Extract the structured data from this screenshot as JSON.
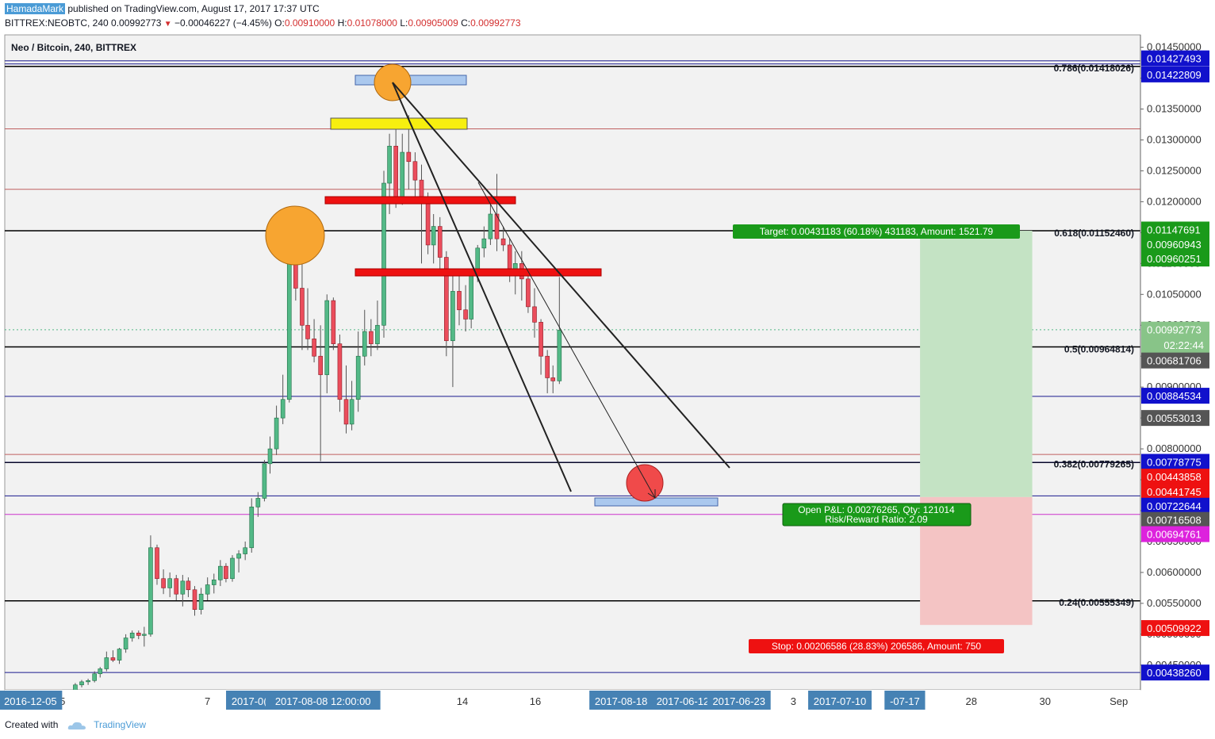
{
  "header": {
    "author": "HamadaMark",
    "published": "published on TradingView.com, August 17, 2017 17:37 UTC",
    "symbol_line": "BITTREX:NEOBTC, 240",
    "last": "0.00992773",
    "change": "−0.00046227 (−4.45%)",
    "o_label": "O:",
    "o": "0.00910000",
    "h_label": "H:",
    "h": "0.01078000",
    "l_label": "L:",
    "l": "0.00905009",
    "c_label": "C:",
    "c": "0.00992773"
  },
  "footer": {
    "created_with": "Created with",
    "brand": "TradingView"
  },
  "chart_data": {
    "type": "candlestick",
    "title": "Neo / Bitcoin, 240, BITTREX",
    "ylim": [
      0.0041,
      0.0147
    ],
    "y_ticks": [
      "0.01450000",
      "0.01400000",
      "0.01350000",
      "0.01300000",
      "0.01250000",
      "0.01200000",
      "0.01150000",
      "0.01100000",
      "0.01050000",
      "0.01000000",
      "0.00950000",
      "0.00900000",
      "0.00850000",
      "0.00800000",
      "0.00750000",
      "0.00700000",
      "0.00650000",
      "0.00600000",
      "0.00550000",
      "0.00500000",
      "0.00450000"
    ],
    "x_ticks": [
      {
        "label": "5",
        "x": 0.0
      },
      {
        "label": "7",
        "x": 18.1
      },
      {
        "label": "14",
        "x": 49.9
      },
      {
        "label": "16",
        "x": 59.0
      },
      {
        "label": "3",
        "x": 91.2
      },
      {
        "label": "28",
        "x": 113.4
      },
      {
        "label": "30",
        "x": 122.6
      },
      {
        "label": "Sep",
        "x": 131.8
      }
    ],
    "x_badges": [
      {
        "label": "2016-12-05",
        "x": -4.0
      },
      {
        "label": "2017-0(",
        "x": 23.3
      },
      {
        "label": "2017-08-08 12:00:00",
        "x": 32.5
      },
      {
        "label": "2017-08-18",
        "x": 69.7
      },
      {
        "label": "2017-06-12",
        "x": 77.4
      },
      {
        "label": "2017-06-23",
        "x": 84.4
      },
      {
        "label": "2017-07-10",
        "x": 97.0
      },
      {
        "label": "-07-17",
        "x": 105.1
      }
    ],
    "x_range": [
      -7.2,
      134.5
    ],
    "candles": [
      [
        1.6,
        0.00408,
        0.00421,
        0.00405,
        0.00418
      ],
      [
        2.4,
        0.00418,
        0.00426,
        0.00414,
        0.00423
      ],
      [
        3.2,
        0.00423,
        0.00428,
        0.00418,
        0.00425
      ],
      [
        4.0,
        0.00425,
        0.0044,
        0.00422,
        0.00436
      ],
      [
        4.7,
        0.00436,
        0.00447,
        0.0043,
        0.00444
      ],
      [
        5.5,
        0.00444,
        0.00472,
        0.0044,
        0.00462
      ],
      [
        6.3,
        0.00462,
        0.00474,
        0.00455,
        0.00458
      ],
      [
        7.1,
        0.00458,
        0.00478,
        0.00452,
        0.00476
      ],
      [
        7.9,
        0.00476,
        0.005,
        0.0047,
        0.00494
      ],
      [
        8.7,
        0.00494,
        0.00506,
        0.00488,
        0.00502
      ],
      [
        9.5,
        0.00502,
        0.00506,
        0.00492,
        0.00498
      ],
      [
        10.2,
        0.00498,
        0.00512,
        0.0048,
        0.005
      ],
      [
        11.0,
        0.005,
        0.0066,
        0.00496,
        0.0064
      ],
      [
        11.8,
        0.0064,
        0.00645,
        0.0058,
        0.0059
      ],
      [
        12.6,
        0.0059,
        0.00605,
        0.00565,
        0.00575
      ],
      [
        13.4,
        0.00575,
        0.006,
        0.0056,
        0.0059
      ],
      [
        14.2,
        0.0059,
        0.00596,
        0.00555,
        0.00565
      ],
      [
        15.0,
        0.00565,
        0.00596,
        0.00545,
        0.00586
      ],
      [
        15.7,
        0.00586,
        0.00592,
        0.0056,
        0.00572
      ],
      [
        16.5,
        0.00572,
        0.00578,
        0.0053,
        0.0054
      ],
      [
        17.3,
        0.0054,
        0.00575,
        0.00532,
        0.00565
      ],
      [
        18.1,
        0.00565,
        0.00592,
        0.00555,
        0.0058
      ],
      [
        18.9,
        0.0058,
        0.00598,
        0.00566,
        0.00588
      ],
      [
        19.7,
        0.00588,
        0.0062,
        0.00578,
        0.0061
      ],
      [
        20.4,
        0.0061,
        0.00615,
        0.00584,
        0.0059
      ],
      [
        21.2,
        0.0059,
        0.00628,
        0.00585,
        0.00623
      ],
      [
        22.0,
        0.00623,
        0.00636,
        0.006,
        0.0063
      ],
      [
        22.8,
        0.0063,
        0.0065,
        0.0062,
        0.0064
      ],
      [
        23.6,
        0.0064,
        0.0072,
        0.00632,
        0.00706
      ],
      [
        24.4,
        0.00706,
        0.0073,
        0.0069,
        0.0072
      ],
      [
        25.2,
        0.0072,
        0.00782,
        0.00715,
        0.00776
      ],
      [
        25.9,
        0.00776,
        0.0082,
        0.0076,
        0.008
      ],
      [
        26.7,
        0.008,
        0.0087,
        0.0079,
        0.0085
      ],
      [
        27.5,
        0.0085,
        0.0092,
        0.0084,
        0.0088
      ],
      [
        28.3,
        0.0088,
        0.0112,
        0.00875,
        0.011
      ],
      [
        29.1,
        0.011,
        0.0115,
        0.0104,
        0.0106
      ],
      [
        29.9,
        0.0106,
        0.0112,
        0.0096,
        0.01
      ],
      [
        30.6,
        0.01,
        0.0106,
        0.0096,
        0.00978
      ],
      [
        31.4,
        0.00978,
        0.0101,
        0.0094,
        0.0095
      ],
      [
        32.2,
        0.0095,
        0.01,
        0.0078,
        0.0092
      ],
      [
        33.0,
        0.0092,
        0.0105,
        0.0089,
        0.0104
      ],
      [
        33.8,
        0.0104,
        0.01045,
        0.0096,
        0.0097
      ],
      [
        34.6,
        0.0097,
        0.00985,
        0.0086,
        0.0088
      ],
      [
        35.4,
        0.0088,
        0.00935,
        0.00825,
        0.0084
      ],
      [
        36.1,
        0.0084,
        0.0091,
        0.0083,
        0.0088
      ],
      [
        36.9,
        0.0088,
        0.0099,
        0.0086,
        0.0095
      ],
      [
        37.7,
        0.0095,
        0.01025,
        0.00935,
        0.0099
      ],
      [
        38.5,
        0.0099,
        0.0101,
        0.0095,
        0.0097
      ],
      [
        39.3,
        0.0097,
        0.0104,
        0.0096,
        0.01
      ],
      [
        40.1,
        0.01,
        0.0125,
        0.0098,
        0.0123
      ],
      [
        40.8,
        0.0123,
        0.0131,
        0.0118,
        0.0129
      ],
      [
        41.6,
        0.0129,
        0.0133,
        0.0119,
        0.012
      ],
      [
        42.4,
        0.012,
        0.0131,
        0.01195,
        0.0128
      ],
      [
        43.2,
        0.0128,
        0.0134,
        0.0122,
        0.01265
      ],
      [
        44.0,
        0.01265,
        0.0128,
        0.012,
        0.01235
      ],
      [
        44.8,
        0.01235,
        0.0126,
        0.011,
        0.012
      ],
      [
        45.6,
        0.012,
        0.01215,
        0.01115,
        0.0113
      ],
      [
        46.3,
        0.0113,
        0.0118,
        0.011,
        0.0116
      ],
      [
        47.1,
        0.0116,
        0.01175,
        0.0109,
        0.0111
      ],
      [
        47.9,
        0.0111,
        0.0112,
        0.0095,
        0.00975
      ],
      [
        48.7,
        0.00975,
        0.0108,
        0.009,
        0.01055
      ],
      [
        49.5,
        0.01055,
        0.0109,
        0.01,
        0.01025
      ],
      [
        50.3,
        0.01025,
        0.01065,
        0.0099,
        0.0101
      ],
      [
        51.0,
        0.0101,
        0.0109,
        0.00995,
        0.0108
      ],
      [
        51.8,
        0.0108,
        0.0113,
        0.0107,
        0.01125
      ],
      [
        52.6,
        0.01125,
        0.0116,
        0.0111,
        0.0114
      ],
      [
        53.4,
        0.0114,
        0.012,
        0.0113,
        0.0118
      ],
      [
        54.2,
        0.0118,
        0.01245,
        0.0112,
        0.0114
      ],
      [
        55.0,
        0.0114,
        0.0116,
        0.0112,
        0.0113
      ],
      [
        55.8,
        0.0113,
        0.0114,
        0.0107,
        0.01085
      ],
      [
        56.5,
        0.01085,
        0.0112,
        0.0105,
        0.011
      ],
      [
        57.3,
        0.011,
        0.0112,
        0.0104,
        0.01075
      ],
      [
        58.1,
        0.01075,
        0.0108,
        0.0102,
        0.0103
      ],
      [
        58.9,
        0.0103,
        0.0106,
        0.0098,
        0.01005
      ],
      [
        59.7,
        0.01005,
        0.0101,
        0.0092,
        0.0095
      ],
      [
        60.5,
        0.0095,
        0.0096,
        0.0089,
        0.00915
      ],
      [
        61.2,
        0.00915,
        0.00935,
        0.0089,
        0.0091
      ],
      [
        62.0,
        0.0091,
        0.01078,
        0.00905,
        0.00992
      ]
    ],
    "price_lines": [
      {
        "price": 0.01428,
        "color": "#1a1a8e",
        "width": 1
      },
      {
        "price": 0.01423,
        "color": "#1a1a8e",
        "width": 1
      },
      {
        "price": 0.01419,
        "color": "#000000",
        "width": 1.5
      },
      {
        "price": 0.01318,
        "color": "#c06060",
        "width": 1
      },
      {
        "price": 0.0122,
        "color": "#c06060",
        "width": 1
      },
      {
        "price": 0.01153,
        "color": "#000000",
        "width": 1.5
      },
      {
        "price": 0.00965,
        "color": "#000000",
        "width": 1.5
      },
      {
        "price": 0.00885,
        "color": "#1a1a8e",
        "width": 1
      },
      {
        "price": 0.00791,
        "color": "#c06060",
        "width": 1
      },
      {
        "price": 0.00778,
        "color": "#1a1a8e",
        "width": 1.5
      },
      {
        "price": 0.00778,
        "color": "#000000",
        "width": 1
      },
      {
        "price": 0.00724,
        "color": "#1a1a8e",
        "width": 1
      },
      {
        "price": 0.00694,
        "color": "#cc33cc",
        "width": 1
      },
      {
        "price": 0.00554,
        "color": "#000000",
        "width": 1.5
      },
      {
        "price": 0.00438,
        "color": "#1a1a8e",
        "width": 1
      }
    ],
    "fib_labels": [
      {
        "text": "0.786(0.01418026)",
        "price": 0.01416
      },
      {
        "text": "0.618(0.01152460)",
        "price": 0.01149
      },
      {
        "text": "0.5(0.00964814)",
        "price": 0.00961
      },
      {
        "text": "0.382(0.00779265)",
        "price": 0.00775
      },
      {
        "text": "0.24(0.00555349)",
        "price": 0.00551
      }
    ],
    "price_badges": [
      {
        "text": "0.01427493",
        "price": 0.01432,
        "bg": "#1111cc"
      },
      {
        "text": "0.01422809",
        "price": 0.01406,
        "bg": "#1111cc"
      },
      {
        "text": "0.01147691",
        "price": 0.01155,
        "bg": "#1a9a1a"
      },
      {
        "text": "0.00960943",
        "price": 0.01131,
        "bg": "#1a9a1a"
      },
      {
        "text": "0.00960251",
        "price": 0.01108,
        "bg": "#1a9a1a"
      },
      {
        "text": "0.00992773",
        "price": 0.00993,
        "bg": "#88c488"
      },
      {
        "text": "02:22:44",
        "price": 0.00968,
        "bg": "#88c488"
      },
      {
        "text": "0.00681706",
        "price": 0.00943,
        "bg": "#555555"
      },
      {
        "text": "0.00884534",
        "price": 0.00886,
        "bg": "#1111cc"
      },
      {
        "text": "0.00553013",
        "price": 0.0085,
        "bg": "#555555"
      },
      {
        "text": "0.00778775",
        "price": 0.00779,
        "bg": "#1111cc"
      },
      {
        "text": "0.00443858",
        "price": 0.00755,
        "bg": "#ee1111"
      },
      {
        "text": "0.00441745",
        "price": 0.00731,
        "bg": "#ee1111"
      },
      {
        "text": "0.00722644",
        "price": 0.00708,
        "bg": "#1111cc"
      },
      {
        "text": "0.00716508",
        "price": 0.00685,
        "bg": "#555555"
      },
      {
        "text": "0.00694761",
        "price": 0.00662,
        "bg": "#dd22dd"
      },
      {
        "text": "0.00509922",
        "price": 0.0051,
        "bg": "#ee1111"
      },
      {
        "text": "0.00438260",
        "price": 0.00438,
        "bg": "#1111cc"
      }
    ],
    "position": {
      "x_start": 107.0,
      "x_end": 121.0,
      "entry": 0.00722,
      "target": 0.01153,
      "stop": 0.00515,
      "target_label": "Target: 0.00431183 (60.18%) 431183, Amount: 1521.79",
      "pnl_label": "Open P&L: 0.00276265, Qty: 121014",
      "rr_label": "Risk/Reward Ratio: 2.09",
      "stop_label": "Stop: 0.00206586 (28.83%) 206586, Amount: 750"
    },
    "colors": {
      "up": "#53b987",
      "down": "#eb4d5c",
      "target_zone": "#c4e3c4",
      "stop_zone": "#f4c4c4"
    }
  }
}
